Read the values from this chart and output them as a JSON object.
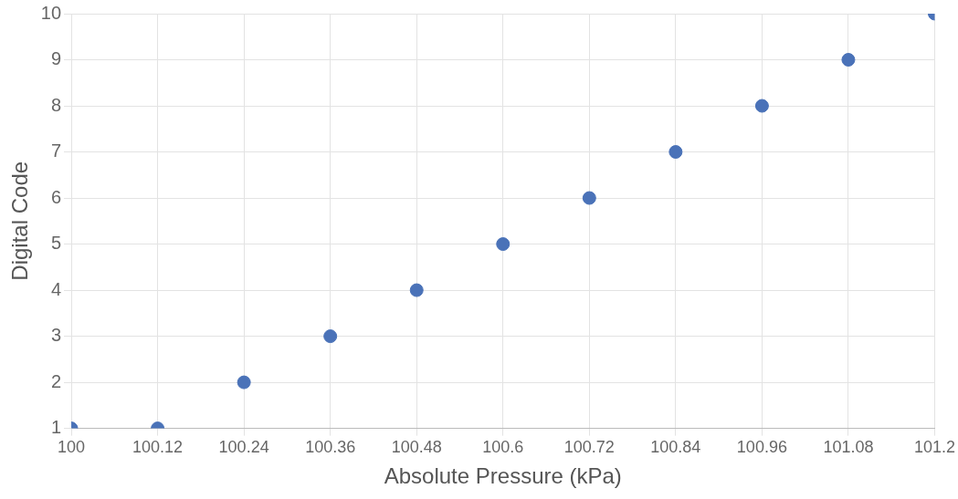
{
  "chart_data": {
    "type": "scatter",
    "xlabel": "Absolute Pressure (kPa)",
    "ylabel": "Digital Code",
    "x": [
      100,
      100.12,
      100.24,
      100.36,
      100.48,
      100.6,
      100.72,
      100.84,
      100.96,
      101.08,
      101.2
    ],
    "series": [
      {
        "color": "#4a72b8",
        "values": [
          1,
          1,
          2,
          3,
          4,
          5,
          6,
          7,
          8,
          9,
          10
        ]
      }
    ],
    "xlim": [
      100,
      101.2
    ],
    "xticks": [
      100,
      100.12,
      100.24,
      100.36,
      100.48,
      100.6,
      100.72,
      100.84,
      100.96,
      101.08,
      101.2
    ],
    "ylim": [
      1,
      10
    ],
    "yticks": [
      1,
      2,
      3,
      4,
      5,
      6,
      7,
      8,
      9,
      10
    ],
    "grid": true,
    "legend": false,
    "marker": "circle"
  }
}
